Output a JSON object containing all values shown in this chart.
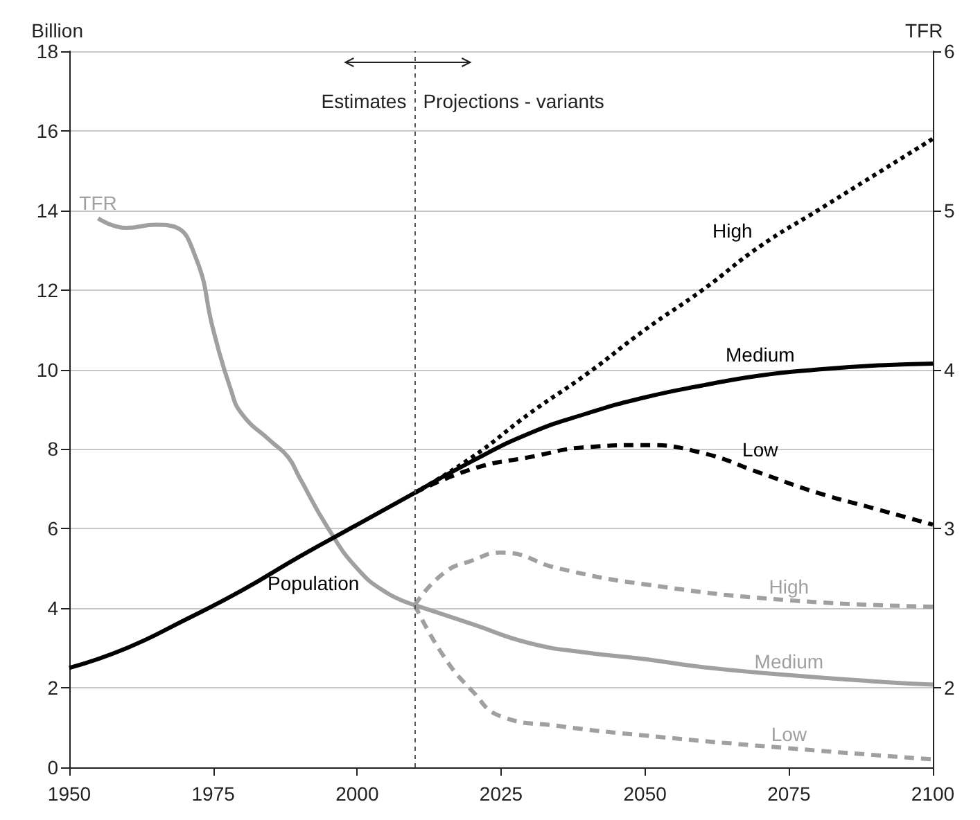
{
  "chart_data": {
    "type": "line",
    "ylabel": "Billion",
    "y2label": "TFR",
    "xlim": [
      1950,
      2100
    ],
    "xticks": [
      1950,
      1975,
      2000,
      2025,
      2050,
      2075,
      2100
    ],
    "ylim": [
      0,
      18
    ],
    "yticks": [
      0,
      2,
      4,
      6,
      8,
      10,
      12,
      14,
      16,
      18
    ],
    "y2lim": [
      1.5,
      6
    ],
    "y2ticks": [
      2,
      3,
      4,
      5,
      6
    ],
    "grid": "y",
    "legend": false,
    "marker": "none",
    "ref_lines": [
      {
        "axis": "x",
        "value": 2010,
        "label": null,
        "color": "#555555",
        "line_style": "dotted"
      }
    ],
    "annotations": [
      "Estimates",
      "Projections - variants"
    ],
    "series": [
      {
        "name": "Population",
        "color": "#000000",
        "line_style": "solid",
        "x": [
          1950,
          1960,
          1970,
          1980,
          1990,
          2000,
          2010
        ],
        "values": [
          2.5,
          3.0,
          3.7,
          4.45,
          5.3,
          6.1,
          6.9
        ]
      },
      {
        "name": "Medium",
        "color": "#000000",
        "line_style": "solid",
        "x": [
          2010,
          2020,
          2030,
          2040,
          2050,
          2060,
          2070,
          2080,
          2090,
          2100
        ],
        "values": [
          6.9,
          7.7,
          8.4,
          8.9,
          9.3,
          9.6,
          9.85,
          10.0,
          10.1,
          10.15
        ]
      },
      {
        "name": "High",
        "color": "#000000",
        "line_style": "dotted",
        "x": [
          2010,
          2020,
          2030,
          2040,
          2050,
          2060,
          2070,
          2080,
          2090,
          2100
        ],
        "values": [
          6.9,
          7.8,
          8.9,
          9.9,
          11.0,
          12.0,
          13.1,
          14.0,
          14.9,
          15.8
        ]
      },
      {
        "name": "Low",
        "color": "#000000",
        "line_style": "dashed",
        "x": [
          2010,
          2020,
          2030,
          2040,
          2050,
          2060,
          2070,
          2080,
          2090,
          2100
        ],
        "values": [
          6.9,
          7.5,
          7.8,
          8.05,
          8.1,
          7.9,
          7.4,
          6.9,
          6.5,
          6.1
        ]
      },
      {
        "name": "TFR",
        "color": "#a0a0a0",
        "line_style": "solid",
        "axis": "y2",
        "x": [
          1955,
          1960,
          1965,
          1968,
          1972,
          1975,
          1978,
          1980,
          1985,
          1988,
          1990,
          1995,
          2000,
          2005,
          2010
        ],
        "values": [
          4.95,
          4.89,
          4.91,
          4.9,
          4.7,
          4.25,
          3.88,
          3.72,
          3.55,
          3.45,
          3.32,
          3.0,
          2.75,
          2.6,
          2.52
        ]
      },
      {
        "name": "Medium",
        "color": "#a0a0a0",
        "line_style": "solid",
        "axis": "y2",
        "x": [
          2010,
          2020,
          2030,
          2040,
          2050,
          2060,
          2075,
          2090,
          2100
        ],
        "values": [
          2.52,
          2.4,
          2.28,
          2.22,
          2.18,
          2.13,
          2.08,
          2.04,
          2.02
        ]
      },
      {
        "name": "High",
        "color": "#a0a0a0",
        "line_style": "dashed",
        "axis": "y2",
        "x": [
          2010,
          2015,
          2020,
          2025,
          2035,
          2050,
          2075,
          2100
        ],
        "values": [
          2.52,
          2.72,
          2.8,
          2.85,
          2.75,
          2.65,
          2.55,
          2.51
        ]
      },
      {
        "name": "Low",
        "color": "#a0a0a0",
        "line_style": "dashed",
        "axis": "y2",
        "x": [
          2010,
          2015,
          2020,
          2025,
          2035,
          2050,
          2075,
          2100
        ],
        "values": [
          2.52,
          2.2,
          1.98,
          1.82,
          1.76,
          1.7,
          1.62,
          1.55
        ]
      }
    ]
  }
}
